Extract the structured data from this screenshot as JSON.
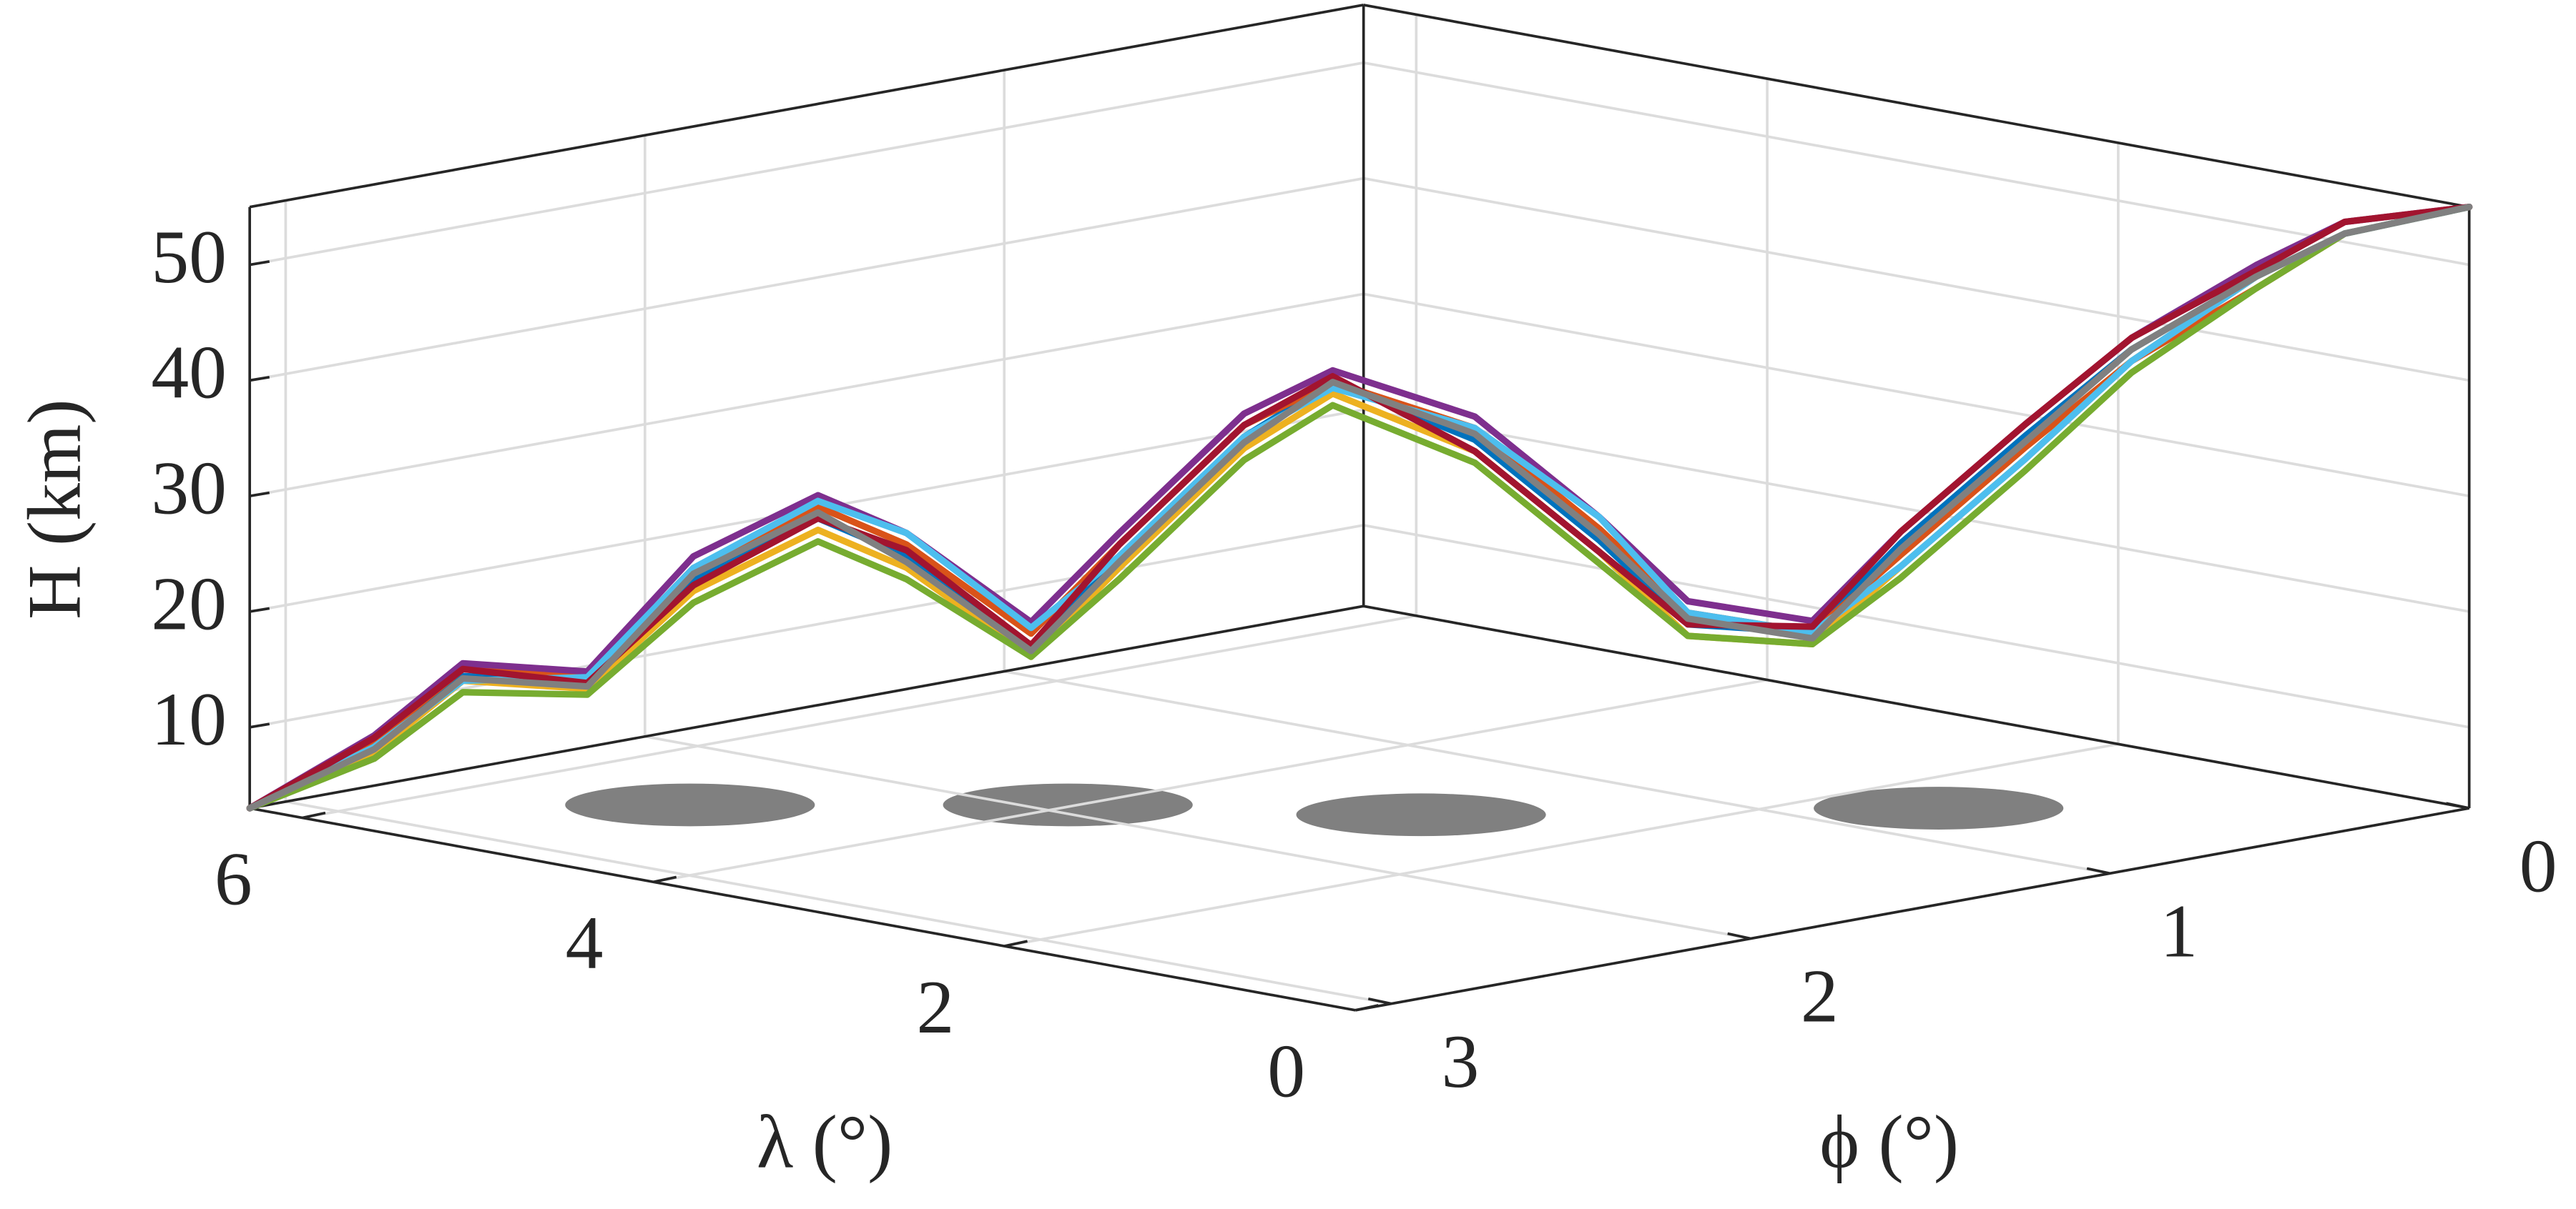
{
  "chart_data": {
    "type": "line3d",
    "zlabel": "H (km)",
    "xlabel": "λ (°)",
    "ylabel": "ϕ (°)",
    "xlim": [
      0,
      6.3
    ],
    "ylim": [
      0,
      3.1
    ],
    "zlim": [
      3,
      55
    ],
    "xticks": [
      0,
      2,
      4,
      6
    ],
    "yticks": [
      0,
      1,
      2,
      3
    ],
    "zticks": [
      10,
      20,
      30,
      40,
      50
    ],
    "grid": true,
    "x": [
      6.3,
      6.0,
      5.7,
      5.4,
      5.0,
      4.7,
      4.4,
      4.1,
      3.8,
      3.5,
      3.2,
      2.8,
      2.5,
      2.2,
      1.9,
      1.6,
      1.3,
      0.9,
      0.6,
      0.3,
      0
    ],
    "y": [
      3.1,
      2.9,
      2.8,
      2.6,
      2.5,
      2.3,
      2.2,
      2.0,
      1.9,
      1.7,
      1.6,
      1.4,
      1.2,
      1.1,
      0.9,
      0.8,
      0.6,
      0.5,
      0.3,
      0.2,
      0
    ],
    "series": [
      {
        "color": "#0072BD",
        "values": [
          3,
          8,
          14.4,
          13.6,
          23,
          28,
          25,
          17,
          25,
          35,
          40,
          35,
          26,
          19,
          18,
          26,
          35,
          43,
          49,
          53,
          55
        ]
      },
      {
        "color": "#D95319",
        "values": [
          3,
          8.5,
          15,
          14,
          24,
          29,
          26,
          18,
          26,
          36,
          40,
          36,
          27,
          20,
          18,
          25,
          34,
          42,
          48,
          53,
          55
        ]
      },
      {
        "color": "#EDB120",
        "values": [
          3,
          7.5,
          14,
          13,
          22,
          27,
          24,
          16,
          24,
          34,
          39,
          34,
          25,
          18,
          17,
          24,
          33,
          42,
          49,
          53,
          55
        ]
      },
      {
        "color": "#7E2F8E",
        "values": [
          3,
          9,
          15.5,
          14.5,
          25,
          30,
          27,
          19,
          27,
          37,
          41,
          37,
          28,
          21,
          19,
          27,
          36,
          44,
          50,
          54,
          55
        ]
      },
      {
        "color": "#77AC30",
        "values": [
          3,
          7,
          13,
          12.5,
          21,
          26,
          23,
          16,
          23,
          33,
          38,
          33,
          24,
          18,
          17,
          23,
          32,
          41,
          48,
          53,
          55
        ]
      },
      {
        "color": "#4DBEEE",
        "values": [
          3,
          8,
          14,
          14,
          24,
          29.5,
          27,
          18.5,
          25,
          35,
          39.5,
          36,
          28,
          20,
          18,
          24,
          33,
          42,
          49,
          53,
          55
        ]
      },
      {
        "color": "#A2142F",
        "values": [
          3,
          8.8,
          15,
          13.5,
          22.5,
          28,
          25.5,
          17,
          26,
          36,
          40.5,
          34,
          25,
          19,
          18.5,
          27,
          36,
          44,
          49.5,
          54,
          55
        ]
      },
      {
        "color": "#808080",
        "values": [
          3,
          7.8,
          14.2,
          13.2,
          23.5,
          28.5,
          24.5,
          16.5,
          24.5,
          34.5,
          40,
          35.5,
          26.5,
          19.5,
          17.5,
          25.5,
          34.5,
          43,
          49,
          53,
          55
        ]
      }
    ]
  }
}
